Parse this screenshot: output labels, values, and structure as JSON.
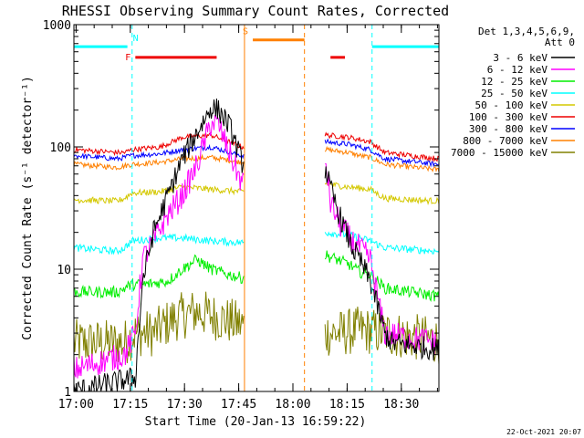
{
  "chart_data": {
    "type": "line",
    "title": "RHESSI Observing Summary Count Rates, Corrected",
    "xlabel": "Start Time (20-Jan-13 16:59:22)",
    "ylabel": "Corrected Count Rate (s⁻¹ detector⁻¹)",
    "yscale": "log",
    "xlim": [
      0,
      101
    ],
    "ylim": [
      1,
      1000
    ],
    "x_ticks": [
      {
        "t": 0.6,
        "label": "17:00"
      },
      {
        "t": 15.6,
        "label": "17:15"
      },
      {
        "t": 30.6,
        "label": "17:30"
      },
      {
        "t": 45.6,
        "label": "17:45"
      },
      {
        "t": 60.6,
        "label": "18:00"
      },
      {
        "t": 75.6,
        "label": "18:15"
      },
      {
        "t": 90.6,
        "label": "18:30"
      }
    ],
    "y_ticks": [
      {
        "v": 1,
        "label": "1"
      },
      {
        "v": 10,
        "label": "10"
      },
      {
        "v": 100,
        "label": "100"
      },
      {
        "v": 1000,
        "label": "1000"
      }
    ],
    "legend_header": [
      "Det 1,3,4,5,6,9,",
      "Att 0"
    ],
    "timestamp": "22-Oct-2021 20:07",
    "gaps": [
      [
        47.2,
        69.5
      ]
    ],
    "series": [
      {
        "name": "3 - 6 keV",
        "color": "#000000",
        "noise": 0.22,
        "points": [
          [
            0,
            1
          ],
          [
            17,
            1.3
          ],
          [
            19,
            8
          ],
          [
            22,
            20
          ],
          [
            26,
            40
          ],
          [
            30,
            80
          ],
          [
            34,
            130
          ],
          [
            38,
            210
          ],
          [
            40,
            200
          ],
          [
            43,
            150
          ],
          [
            46.5,
            75
          ],
          [
            69.7,
            65
          ],
          [
            71,
            45
          ],
          [
            74,
            25
          ],
          [
            77,
            15
          ],
          [
            79,
            12
          ],
          [
            82,
            8
          ],
          [
            84,
            5
          ],
          [
            86,
            3
          ],
          [
            88,
            2.5
          ],
          [
            101,
            2.2
          ]
        ]
      },
      {
        "name": "6 - 12 keV",
        "color": "#ff00ff",
        "noise": 0.25,
        "points": [
          [
            0,
            1.5
          ],
          [
            14,
            2
          ],
          [
            17,
            3
          ],
          [
            19,
            12
          ],
          [
            22,
            17
          ],
          [
            26,
            28
          ],
          [
            30,
            40
          ],
          [
            34,
            70
          ],
          [
            38,
            160
          ],
          [
            40,
            150
          ],
          [
            43,
            90
          ],
          [
            46.5,
            50
          ],
          [
            69.7,
            75
          ],
          [
            71,
            35
          ],
          [
            74,
            22
          ],
          [
            77,
            17
          ],
          [
            79,
            15
          ],
          [
            82,
            12
          ],
          [
            84,
            6
          ],
          [
            86,
            3
          ],
          [
            101,
            2.5
          ]
        ]
      },
      {
        "name": "12 - 25 keV",
        "color": "#00ee00",
        "noise": 0.11,
        "points": [
          [
            0,
            6.5
          ],
          [
            12,
            6.5
          ],
          [
            14,
            7
          ],
          [
            16,
            7.5
          ],
          [
            20,
            7.5
          ],
          [
            26,
            8
          ],
          [
            30,
            10
          ],
          [
            34,
            12
          ],
          [
            38,
            10
          ],
          [
            43,
            9
          ],
          [
            46.5,
            8.5
          ],
          [
            69.7,
            13
          ],
          [
            76,
            11
          ],
          [
            79,
            9.5
          ],
          [
            82,
            9
          ],
          [
            86,
            7
          ],
          [
            101,
            6
          ]
        ]
      },
      {
        "name": "25 - 50 keV",
        "color": "#00ffff",
        "noise": 0.07,
        "points": [
          [
            0,
            15
          ],
          [
            12,
            14
          ],
          [
            14,
            15
          ],
          [
            16,
            17
          ],
          [
            24,
            18
          ],
          [
            30,
            18
          ],
          [
            38,
            17
          ],
          [
            46.5,
            16.5
          ],
          [
            69.7,
            20
          ],
          [
            76,
            19
          ],
          [
            79,
            18
          ],
          [
            82,
            17
          ],
          [
            86,
            15
          ],
          [
            101,
            14
          ]
        ]
      },
      {
        "name": "50 - 100 keV",
        "color": "#d4c800",
        "noise": 0.06,
        "points": [
          [
            0,
            37
          ],
          [
            12,
            36
          ],
          [
            14,
            38
          ],
          [
            16,
            42
          ],
          [
            24,
            43
          ],
          [
            30,
            47
          ],
          [
            38,
            45
          ],
          [
            46.5,
            43
          ],
          [
            69.7,
            50
          ],
          [
            76,
            47
          ],
          [
            79,
            46
          ],
          [
            82,
            45
          ],
          [
            86,
            38
          ],
          [
            101,
            36
          ]
        ]
      },
      {
        "name": "100 - 300 keV",
        "color": "#ee0000",
        "noise": 0.05,
        "points": [
          [
            0,
            95
          ],
          [
            12,
            90
          ],
          [
            14,
            90
          ],
          [
            16,
            95
          ],
          [
            24,
            100
          ],
          [
            30,
            120
          ],
          [
            38,
            125
          ],
          [
            46.5,
            100
          ],
          [
            69.7,
            125
          ],
          [
            76,
            120
          ],
          [
            79,
            115
          ],
          [
            82,
            110
          ],
          [
            86,
            90
          ],
          [
            101,
            80
          ]
        ]
      },
      {
        "name": "300 - 800 keV",
        "color": "#0000ff",
        "noise": 0.05,
        "points": [
          [
            0,
            85
          ],
          [
            12,
            80
          ],
          [
            14,
            82
          ],
          [
            16,
            85
          ],
          [
            24,
            88
          ],
          [
            30,
            95
          ],
          [
            38,
            100
          ],
          [
            46.5,
            85
          ],
          [
            69.7,
            110
          ],
          [
            76,
            105
          ],
          [
            79,
            100
          ],
          [
            82,
            95
          ],
          [
            86,
            80
          ],
          [
            101,
            72
          ]
        ]
      },
      {
        "name": "800 - 7000 keV",
        "color": "#ff8000",
        "noise": 0.05,
        "points": [
          [
            0,
            72
          ],
          [
            12,
            68
          ],
          [
            14,
            70
          ],
          [
            16,
            72
          ],
          [
            24,
            75
          ],
          [
            30,
            80
          ],
          [
            38,
            82
          ],
          [
            46.5,
            75
          ],
          [
            69.7,
            95
          ],
          [
            76,
            90
          ],
          [
            79,
            85
          ],
          [
            82,
            82
          ],
          [
            86,
            72
          ],
          [
            101,
            65
          ]
        ]
      },
      {
        "name": "7000 - 15000 keV",
        "color": "#808000",
        "noise": 0.45,
        "points": [
          [
            0,
            2.5
          ],
          [
            14,
            2.5
          ],
          [
            17,
            3
          ],
          [
            22,
            3
          ],
          [
            28,
            4
          ],
          [
            34,
            4.5
          ],
          [
            40,
            4
          ],
          [
            46.5,
            3.5
          ],
          [
            69.7,
            3
          ],
          [
            74,
            3
          ],
          [
            79,
            3.2
          ],
          [
            86,
            3
          ],
          [
            101,
            2.6
          ]
        ]
      }
    ],
    "annotations": [
      {
        "label": "N",
        "color": "#00ffff",
        "bars": [
          [
            0,
            14.8
          ],
          [
            82.5,
            101
          ]
        ],
        "level": 660,
        "vlines": [
          0,
          16.1,
          82.5,
          101
        ]
      },
      {
        "label": "F",
        "color": "#ee0000",
        "bars": [
          [
            17,
            39.5
          ],
          [
            71,
            75
          ]
        ],
        "level": 540
      },
      {
        "label": "S",
        "color": "#ff8000",
        "bars": [
          [
            49.5,
            63.8
          ]
        ],
        "level": 750,
        "vlines": [
          47.2,
          63.8
        ]
      }
    ]
  }
}
